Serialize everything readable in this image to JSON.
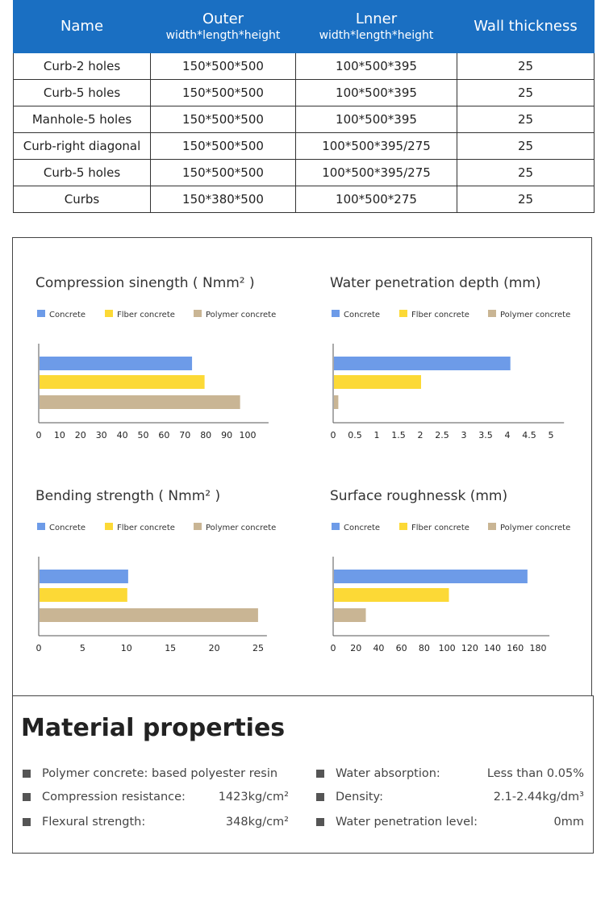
{
  "table": {
    "headers": [
      {
        "main": "Name",
        "sub": ""
      },
      {
        "main": "Outer",
        "sub": "width*length*height"
      },
      {
        "main": "Lnner",
        "sub": "width*length*height"
      },
      {
        "main": "Wall thickness",
        "sub": ""
      }
    ],
    "rows": [
      [
        "Curb-2 holes",
        "150*500*500",
        "100*500*395",
        "25"
      ],
      [
        "Curb-5 holes",
        "150*500*500",
        "100*500*395",
        "25"
      ],
      [
        "Manhole-5 holes",
        "150*500*500",
        "100*500*395",
        "25"
      ],
      [
        "Curb-right diagonal",
        "150*500*500",
        "100*500*395/275",
        "25"
      ],
      [
        "Curb-5 holes",
        "150*500*500",
        "100*500*395/275",
        "25"
      ],
      [
        "Curbs",
        "150*380*500",
        "100*500*275",
        "25"
      ]
    ],
    "header_color": "#1a6fc2"
  },
  "chart_data": [
    {
      "type": "bar",
      "orientation": "horizontal",
      "title": "Compression sinength ( Nmm² )",
      "categories": [
        "Concrete",
        "Fiber concrete",
        "Polymer concrete"
      ],
      "legend": [
        "Concrete",
        "Fiber concrete",
        "Polymer concrete"
      ],
      "values": [
        73,
        79,
        96
      ],
      "colors": [
        "#6d9be8",
        "#fcd936",
        "#c9b594"
      ],
      "xticks": [
        "0",
        "10",
        "20",
        "30",
        "40",
        "50",
        "60",
        "70",
        "80",
        "90",
        "100"
      ],
      "xlim": [
        0,
        110
      ],
      "legend_position": "top-left"
    },
    {
      "type": "bar",
      "orientation": "horizontal",
      "title": "Water penetration depth (mm)",
      "categories": [
        "Concrete",
        "Fiber concrete",
        "Polymer concrete"
      ],
      "legend": [
        "Concrete",
        "Fiber concrete",
        "Polymer concrete"
      ],
      "values": [
        4.05,
        2.0,
        0.1
      ],
      "colors": [
        "#6d9be8",
        "#fcd936",
        "#c9b594"
      ],
      "xticks": [
        "0",
        "0.5",
        "1",
        "1.5",
        "2",
        "2.5",
        "3",
        "3.5",
        "4",
        "4.5",
        "5"
      ],
      "xlim": [
        0,
        5.3
      ],
      "legend_position": "top-left"
    },
    {
      "type": "bar",
      "orientation": "horizontal",
      "title": "Bending strength ( Nmm² )",
      "categories": [
        "Concrete",
        "Fiber concrete",
        "Polymer concrete"
      ],
      "legend": [
        "Concrete",
        "Fiber concrete",
        "Polymer concrete"
      ],
      "values": [
        10.1,
        10.0,
        24.9
      ],
      "colors": [
        "#6d9be8",
        "#fcd936",
        "#c9b594"
      ],
      "xticks": [
        "0",
        "5",
        "10",
        "15",
        "20",
        "25"
      ],
      "xlim": [
        0,
        26
      ],
      "legend_position": "top-left"
    },
    {
      "type": "bar",
      "orientation": "horizontal",
      "title": "Surface roughnessk (mm)",
      "categories": [
        "Concrete",
        "Fiber concrete",
        "Polymer concrete"
      ],
      "legend": [
        "Concrete",
        "Fiber concrete",
        "Polymer concrete"
      ],
      "values": [
        170,
        101,
        28
      ],
      "colors": [
        "#6d9be8",
        "#fcd936",
        "#c9b594"
      ],
      "xticks": [
        "0",
        "20",
        "40",
        "60",
        "80",
        "100",
        "120",
        "140",
        "160",
        "180"
      ],
      "xlim": [
        0,
        190
      ],
      "legend_position": "top-left"
    }
  ],
  "charts_legend_labels": [
    "Concrete",
    "Flber concrete",
    "Polymer concrete"
  ],
  "material": {
    "title": "Material properties",
    "left": [
      {
        "label": "Polymer concrete: based polyester resin",
        "value": ""
      },
      {
        "label": "Compression resistance:",
        "value": "1423kg/cm²"
      },
      {
        "label": "Flexural strength:",
        "value": "348kg/cm²"
      }
    ],
    "right": [
      {
        "label": "Water absorption:",
        "value": "Less than 0.05%"
      },
      {
        "label": "Density:",
        "value": "2.1-2.44kg/dm³"
      },
      {
        "label": "Water penetration level:",
        "value": "0mm"
      }
    ]
  }
}
